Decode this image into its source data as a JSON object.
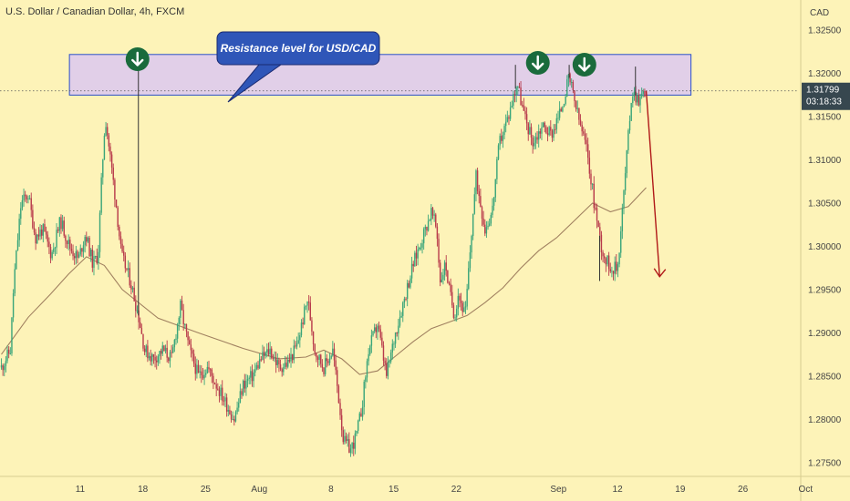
{
  "header": {
    "title": "U.S. Dollar / Canadian Dollar, 4h, FXCM"
  },
  "price_axis": {
    "currency": "CAD",
    "ticks": [
      "1.32500",
      "1.32000",
      "1.31500",
      "1.31000",
      "1.30500",
      "1.30000",
      "1.29500",
      "1.29000",
      "1.28500",
      "1.28000",
      "1.27500"
    ]
  },
  "time_axis": {
    "labels": [
      "11",
      "18",
      "25",
      "Aug",
      "8",
      "15",
      "22",
      "Sep",
      "12",
      "19",
      "26",
      "Oct"
    ]
  },
  "last_price": {
    "value": "1.31799",
    "countdown": "03:18:33"
  },
  "callout": {
    "text": "Resistance level for USD/CAD"
  },
  "arrows": {
    "count": 3,
    "icon": "arrow-down-icon",
    "color": "#1a6b3c"
  },
  "colors": {
    "background": "#fdf3b8",
    "up_candle": "#3aa57a",
    "down_candle": "#b83a4b",
    "ma_line": "#a08060",
    "zone_fill": "#dcc8f0",
    "zone_border": "#2a50c8",
    "callout_fill": "#2f56b8",
    "forecast_arrow": "#b01818",
    "price_tag": "#37474f"
  },
  "chart_data": {
    "type": "candlestick",
    "title": "U.S. Dollar / Canadian Dollar, 4h, FXCM",
    "ylabel": "CAD",
    "ylim": [
      1.2735,
      1.3285
    ],
    "y_ticks": [
      1.325,
      1.32,
      1.315,
      1.31,
      1.305,
      1.3,
      1.295,
      1.29,
      1.285,
      1.28,
      1.275
    ],
    "x_tick_labels": [
      "11",
      "18",
      "25",
      "Aug",
      "8",
      "15",
      "22",
      "Sep",
      "12",
      "19",
      "26",
      "Oct"
    ],
    "resistance_zone": [
      1.3175,
      1.3222
    ],
    "last_price": 1.31799,
    "close_path": [
      {
        "d": 0.0,
        "p": 1.286
      },
      {
        "d": 1.0,
        "p": 1.288
      },
      {
        "d": 1.4,
        "p": 1.296
      },
      {
        "d": 2.2,
        "p": 1.305
      },
      {
        "d": 3.0,
        "p": 1.306
      },
      {
        "d": 3.8,
        "p": 1.301
      },
      {
        "d": 4.6,
        "p": 1.302
      },
      {
        "d": 5.6,
        "p": 1.299
      },
      {
        "d": 6.6,
        "p": 1.303
      },
      {
        "d": 7.6,
        "p": 1.3
      },
      {
        "d": 8.6,
        "p": 1.2985
      },
      {
        "d": 9.4,
        "p": 1.3015
      },
      {
        "d": 10.2,
        "p": 1.298
      },
      {
        "d": 10.8,
        "p": 1.299
      },
      {
        "d": 11.2,
        "p": 1.308
      },
      {
        "d": 11.6,
        "p": 1.315
      },
      {
        "d": 12.2,
        "p": 1.31
      },
      {
        "d": 12.8,
        "p": 1.305
      },
      {
        "d": 13.4,
        "p": 1.299
      },
      {
        "d": 14.4,
        "p": 1.296
      },
      {
        "d": 15.3,
        "p": 1.292
      },
      {
        "d": 16.0,
        "p": 1.288
      },
      {
        "d": 17.0,
        "p": 1.287
      },
      {
        "d": 18.0,
        "p": 1.288
      },
      {
        "d": 19.0,
        "p": 1.287
      },
      {
        "d": 20.0,
        "p": 1.293
      },
      {
        "d": 21.0,
        "p": 1.288
      },
      {
        "d": 22.0,
        "p": 1.285
      },
      {
        "d": 23.0,
        "p": 1.286
      },
      {
        "d": 24.0,
        "p": 1.284
      },
      {
        "d": 25.0,
        "p": 1.282
      },
      {
        "d": 26.0,
        "p": 1.28
      },
      {
        "d": 27.0,
        "p": 1.284
      },
      {
        "d": 28.0,
        "p": 1.285
      },
      {
        "d": 29.0,
        "p": 1.287
      },
      {
        "d": 30.0,
        "p": 1.288
      },
      {
        "d": 31.0,
        "p": 1.286
      },
      {
        "d": 32.0,
        "p": 1.2865
      },
      {
        "d": 33.0,
        "p": 1.2885
      },
      {
        "d": 34.2,
        "p": 1.294
      },
      {
        "d": 35.0,
        "p": 1.288
      },
      {
        "d": 36.0,
        "p": 1.286
      },
      {
        "d": 37.0,
        "p": 1.288
      },
      {
        "d": 37.6,
        "p": 1.283
      },
      {
        "d": 38.2,
        "p": 1.2775
      },
      {
        "d": 39.0,
        "p": 1.2765
      },
      {
        "d": 39.6,
        "p": 1.278
      },
      {
        "d": 40.2,
        "p": 1.281
      },
      {
        "d": 41.0,
        "p": 1.288
      },
      {
        "d": 42.0,
        "p": 1.291
      },
      {
        "d": 43.0,
        "p": 1.285
      },
      {
        "d": 44.0,
        "p": 1.29
      },
      {
        "d": 45.0,
        "p": 1.294
      },
      {
        "d": 46.0,
        "p": 1.298
      },
      {
        "d": 47.0,
        "p": 1.301
      },
      {
        "d": 48.0,
        "p": 1.304
      },
      {
        "d": 48.6,
        "p": 1.302
      },
      {
        "d": 49.0,
        "p": 1.296
      },
      {
        "d": 49.6,
        "p": 1.298
      },
      {
        "d": 50.0,
        "p": 1.295
      },
      {
        "d": 50.6,
        "p": 1.292
      },
      {
        "d": 51.0,
        "p": 1.2945
      },
      {
        "d": 51.8,
        "p": 1.292
      },
      {
        "d": 52.6,
        "p": 1.303
      },
      {
        "d": 53.0,
        "p": 1.308
      },
      {
        "d": 54.0,
        "p": 1.302
      },
      {
        "d": 54.8,
        "p": 1.304
      },
      {
        "d": 55.6,
        "p": 1.312
      },
      {
        "d": 56.6,
        "p": 1.315
      },
      {
        "d": 57.2,
        "p": 1.3175
      },
      {
        "d": 57.6,
        "p": 1.319
      },
      {
        "d": 58.4,
        "p": 1.315
      },
      {
        "d": 59.4,
        "p": 1.312
      },
      {
        "d": 60.4,
        "p": 1.314
      },
      {
        "d": 61.4,
        "p": 1.313
      },
      {
        "d": 62.4,
        "p": 1.3155
      },
      {
        "d": 63.4,
        "p": 1.3195
      },
      {
        "d": 64.4,
        "p": 1.315
      },
      {
        "d": 65.4,
        "p": 1.311
      },
      {
        "d": 66.2,
        "p": 1.305
      },
      {
        "d": 67.0,
        "p": 1.3
      },
      {
        "d": 67.4,
        "p": 1.2985
      },
      {
        "d": 68.2,
        "p": 1.2975
      },
      {
        "d": 68.8,
        "p": 1.2975
      },
      {
        "d": 69.4,
        "p": 1.305
      },
      {
        "d": 70.4,
        "p": 1.318
      },
      {
        "d": 71.2,
        "p": 1.317
      },
      {
        "d": 71.9,
        "p": 1.318
      }
    ],
    "moving_average": [
      {
        "d": 0,
        "p": 1.2875
      },
      {
        "d": 3,
        "p": 1.2918
      },
      {
        "d": 5.5,
        "p": 1.2945
      },
      {
        "d": 7.5,
        "p": 1.2968
      },
      {
        "d": 9.5,
        "p": 1.2988
      },
      {
        "d": 11.5,
        "p": 1.2978
      },
      {
        "d": 13.5,
        "p": 1.295
      },
      {
        "d": 17.5,
        "p": 1.2917
      },
      {
        "d": 22,
        "p": 1.29
      },
      {
        "d": 27,
        "p": 1.2882
      },
      {
        "d": 31,
        "p": 1.287
      },
      {
        "d": 34,
        "p": 1.2872
      },
      {
        "d": 36,
        "p": 1.288
      },
      {
        "d": 38,
        "p": 1.287
      },
      {
        "d": 40,
        "p": 1.2852
      },
      {
        "d": 42,
        "p": 1.2856
      },
      {
        "d": 44,
        "p": 1.2873
      },
      {
        "d": 46,
        "p": 1.289
      },
      {
        "d": 48,
        "p": 1.2905
      },
      {
        "d": 52,
        "p": 1.292
      },
      {
        "d": 54,
        "p": 1.2935
      },
      {
        "d": 56,
        "p": 1.2952
      },
      {
        "d": 58,
        "p": 1.2975
      },
      {
        "d": 60,
        "p": 1.2995
      },
      {
        "d": 62,
        "p": 1.301
      },
      {
        "d": 64,
        "p": 1.303
      },
      {
        "d": 66,
        "p": 1.305
      },
      {
        "d": 68,
        "p": 1.304
      },
      {
        "d": 70,
        "p": 1.3046
      },
      {
        "d": 72,
        "p": 1.3068
      }
    ],
    "spikes": [
      {
        "d": 15.3,
        "high": 1.322
      },
      {
        "d": 57.4,
        "high": 1.321
      },
      {
        "d": 63.4,
        "high": 1.321
      },
      {
        "d": 66.8,
        "low": 1.296
      },
      {
        "d": 70.8,
        "high": 1.3208
      }
    ],
    "forecast": {
      "from": {
        "d": 72,
        "p": 1.318
      },
      "to": {
        "d": 73.5,
        "p": 1.2965
      }
    }
  }
}
